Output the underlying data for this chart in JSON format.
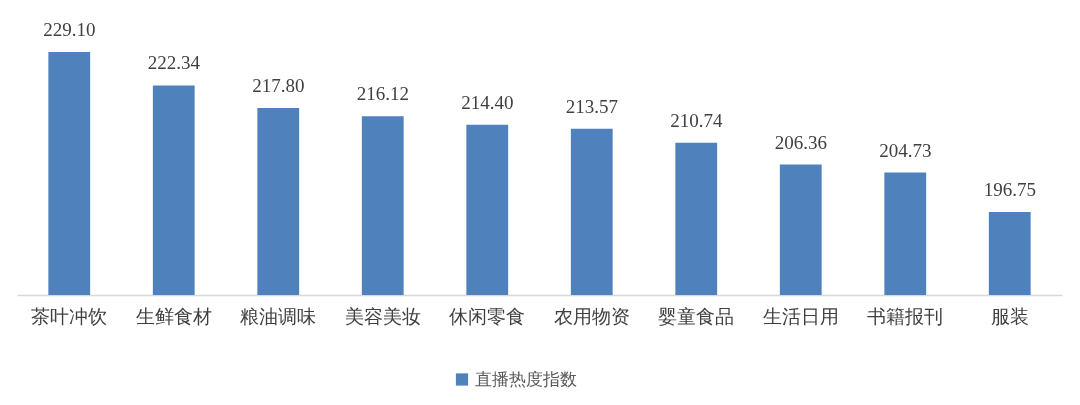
{
  "chart_data": {
    "type": "bar",
    "categories": [
      "茶叶冲饮",
      "生鲜食材",
      "粮油调味",
      "美容美妆",
      "休闲零食",
      "农用物资",
      "婴童食品",
      "生活日用",
      "书籍报刊",
      "服装"
    ],
    "series": [
      {
        "name": "直播热度指数",
        "color": "#4f81bd",
        "values": [
          229.1,
          222.34,
          217.8,
          216.12,
          214.4,
          213.57,
          210.74,
          206.36,
          204.73,
          196.75
        ],
        "value_labels": [
          "229.10",
          "222.34",
          "217.80",
          "216.12",
          "214.40",
          "213.57",
          "210.74",
          "206.36",
          "204.73",
          "196.75"
        ]
      }
    ],
    "ylim": [
      180,
      229.1
    ],
    "tick_labels": "x",
    "legend": "bottom"
  }
}
